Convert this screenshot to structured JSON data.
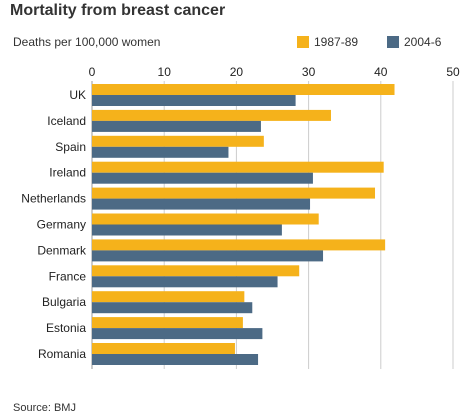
{
  "chart_data": {
    "type": "bar",
    "orientation": "horizontal",
    "title": "Mortality from breast cancer",
    "subtitle": "Deaths per 100,000 women",
    "categories": [
      "UK",
      "Iceland",
      "Spain",
      "Ireland",
      "Netherlands",
      "Germany",
      "Denmark",
      "France",
      "Bulgaria",
      "Estonia",
      "Romania"
    ],
    "series": [
      {
        "name": "1987-89",
        "color": "#f5b21b",
        "values": [
          41.9,
          33.1,
          23.8,
          40.4,
          39.2,
          31.4,
          40.6,
          28.7,
          21.1,
          20.9,
          19.8
        ]
      },
      {
        "name": "2004-6",
        "color": "#4c6a85",
        "values": [
          28.2,
          23.4,
          18.9,
          30.6,
          30.2,
          26.3,
          32.0,
          25.7,
          22.2,
          23.6,
          23.0
        ]
      }
    ],
    "xlim": [
      0,
      50
    ],
    "ticks": [
      0,
      10,
      20,
      30,
      40,
      50
    ],
    "grid": true,
    "legend_position": "top-right",
    "source": "Source: BMJ"
  }
}
